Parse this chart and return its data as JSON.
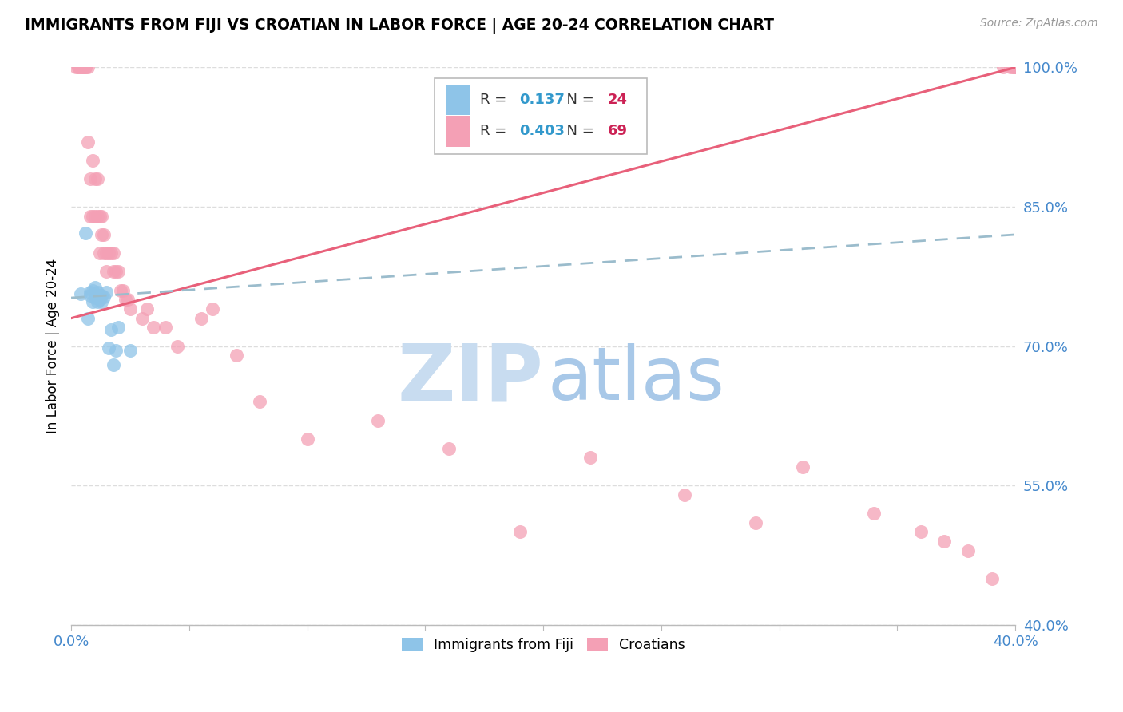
{
  "title": "IMMIGRANTS FROM FIJI VS CROATIAN IN LABOR FORCE | AGE 20-24 CORRELATION CHART",
  "source": "Source: ZipAtlas.com",
  "ylabel": "In Labor Force | Age 20-24",
  "xlim": [
    0.0,
    0.4
  ],
  "ylim": [
    0.4,
    1.0
  ],
  "ytick_vals": [
    0.4,
    0.55,
    0.7,
    0.85,
    1.0
  ],
  "fiji_R": 0.137,
  "fiji_N": 24,
  "croatian_R": 0.403,
  "croatian_N": 69,
  "fiji_color": "#8ec4e8",
  "croatian_color": "#f4a0b5",
  "fiji_line_color": "#9bbccc",
  "croatian_line_color": "#e8607a",
  "tick_color": "#4488cc",
  "grid_color": "#dddddd",
  "watermark_ZIP_color": "#c8dcf0",
  "watermark_atlas_color": "#a8c8e8",
  "fiji_x": [
    0.004,
    0.006,
    0.007,
    0.008,
    0.008,
    0.009,
    0.009,
    0.01,
    0.01,
    0.01,
    0.011,
    0.011,
    0.012,
    0.012,
    0.013,
    0.013,
    0.014,
    0.015,
    0.016,
    0.017,
    0.018,
    0.019,
    0.02,
    0.025
  ],
  "fiji_y": [
    0.756,
    0.822,
    0.73,
    0.755,
    0.758,
    0.748,
    0.76,
    0.752,
    0.763,
    0.755,
    0.758,
    0.748,
    0.755,
    0.75,
    0.755,
    0.748,
    0.753,
    0.758,
    0.698,
    0.718,
    0.68,
    0.695,
    0.72,
    0.695
  ],
  "croatian_x": [
    0.002,
    0.003,
    0.003,
    0.004,
    0.005,
    0.005,
    0.005,
    0.006,
    0.006,
    0.007,
    0.007,
    0.008,
    0.008,
    0.009,
    0.009,
    0.01,
    0.01,
    0.011,
    0.011,
    0.012,
    0.012,
    0.013,
    0.013,
    0.014,
    0.014,
    0.015,
    0.015,
    0.016,
    0.017,
    0.018,
    0.018,
    0.019,
    0.02,
    0.021,
    0.022,
    0.023,
    0.024,
    0.025,
    0.03,
    0.032,
    0.035,
    0.04,
    0.045,
    0.055,
    0.06,
    0.07,
    0.08,
    0.1,
    0.13,
    0.16,
    0.19,
    0.22,
    0.26,
    0.29,
    0.31,
    0.34,
    0.36,
    0.37,
    0.38,
    0.39,
    0.395,
    0.398,
    0.399,
    0.4,
    0.4,
    0.4,
    0.4,
    0.4,
    0.4
  ],
  "croatian_y": [
    1.0,
    1.0,
    1.0,
    1.0,
    1.0,
    1.0,
    1.0,
    1.0,
    1.0,
    1.0,
    0.92,
    0.88,
    0.84,
    0.9,
    0.84,
    0.88,
    0.84,
    0.88,
    0.84,
    0.84,
    0.8,
    0.84,
    0.82,
    0.82,
    0.8,
    0.8,
    0.78,
    0.8,
    0.8,
    0.78,
    0.8,
    0.78,
    0.78,
    0.76,
    0.76,
    0.75,
    0.75,
    0.74,
    0.73,
    0.74,
    0.72,
    0.72,
    0.7,
    0.73,
    0.74,
    0.69,
    0.64,
    0.6,
    0.62,
    0.59,
    0.5,
    0.58,
    0.54,
    0.51,
    0.57,
    0.52,
    0.5,
    0.49,
    0.48,
    0.45,
    1.0,
    1.0,
    1.0,
    1.0,
    1.0,
    1.0,
    1.0,
    1.0,
    1.0
  ],
  "fiji_line": [
    0.0,
    0.4,
    0.752,
    0.82
  ],
  "croatian_line": [
    0.0,
    0.4,
    0.73,
    1.0
  ]
}
